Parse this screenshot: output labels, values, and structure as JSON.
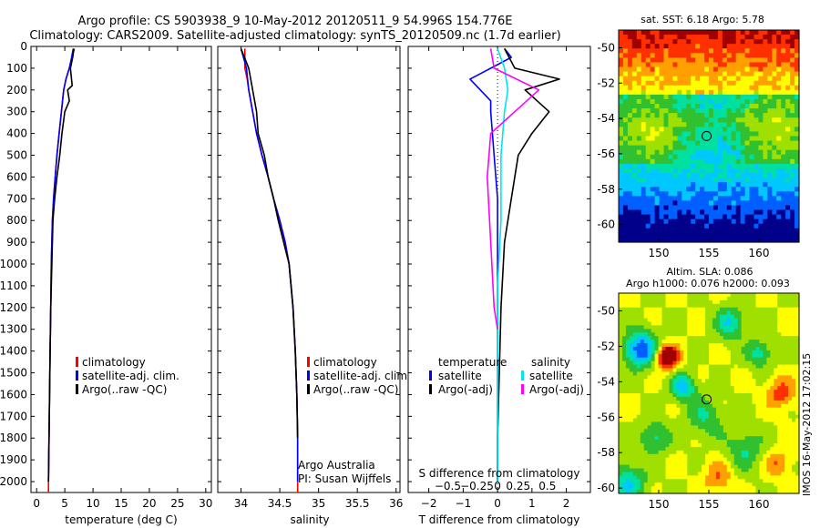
{
  "header": {
    "line1": "Argo profile: CS 5903938_9 10-May-2012 20120511_9 54.996S 154.776E",
    "line2": "Climatology: CARS2009. Satellite-adjusted climatology: synTS_20120509.nc (1.7d earlier)"
  },
  "side_stamp": "IMOS 16-May-2012 17:02:15",
  "colors": {
    "climatology": "#ff0000",
    "satellite": "#0000ff",
    "argo": "#000000",
    "sal_satellite": "#00e5ee",
    "sal_argo": "#ff00ff",
    "marker": "#000000"
  },
  "chart_data": [
    {
      "type": "line",
      "panel": "temperature",
      "xlabel": "temperature (deg C)",
      "ylabel": "",
      "xlim": [
        -1,
        31
      ],
      "ylim": [
        2050,
        0
      ],
      "xticks": [
        0,
        5,
        10,
        15,
        20,
        25,
        30
      ],
      "xtick_labels": [
        "0",
        "5",
        "10",
        "15",
        "20",
        "25",
        "30"
      ],
      "yticks": [
        0,
        100,
        200,
        300,
        400,
        500,
        600,
        700,
        800,
        900,
        1000,
        1100,
        1200,
        1300,
        1400,
        1500,
        1600,
        1700,
        1800,
        1900,
        2000
      ],
      "ytick_labels": [
        "0",
        "100",
        "200",
        "300",
        "400",
        "500",
        "600",
        "700",
        "800",
        "900",
        "1000",
        "1100",
        "1200",
        "1300",
        "1400",
        "1500",
        "1600",
        "1700",
        "1800",
        "1900",
        "2000"
      ],
      "legend": {
        "placement": "lower-center",
        "entries": [
          "climatology",
          "satellite-adj. clim.",
          "Argo(..raw -QC)"
        ]
      },
      "series": [
        {
          "name": "climatology",
          "color": "#ff0000",
          "x": [
            6.7,
            6.3,
            5.8,
            5.2,
            4.8,
            4.4,
            4.0,
            3.6,
            3.3,
            3.0,
            2.8,
            2.6,
            2.5,
            2.4,
            2.3,
            2.2,
            2.15,
            2.1,
            2.1
          ],
          "y": [
            10,
            50,
            100,
            150,
            200,
            300,
            400,
            500,
            600,
            700,
            800,
            1000,
            1200,
            1400,
            1600,
            1800,
            1900,
            2000,
            2050
          ]
        },
        {
          "name": "satellite-adj. clim.",
          "color": "#0000ff",
          "x": [
            6.5,
            6.2,
            5.8,
            5.2,
            4.8,
            4.4,
            4.0,
            3.6,
            3.3,
            3.0,
            2.8,
            2.6,
            2.5,
            2.4,
            2.3,
            2.2,
            2.15,
            2.1
          ],
          "y": [
            10,
            50,
            100,
            150,
            200,
            300,
            400,
            500,
            600,
            700,
            800,
            1000,
            1200,
            1400,
            1600,
            1800,
            1900,
            2000
          ]
        },
        {
          "name": "Argo(..raw -QC)",
          "color": "#000000",
          "x": [
            6.6,
            6.4,
            6.0,
            6.3,
            5.5,
            5.8,
            5.0,
            4.5,
            4.1,
            3.6,
            3.2,
            2.9,
            2.7,
            2.5,
            2.4,
            2.3,
            2.2,
            2.15,
            2.1
          ],
          "y": [
            10,
            50,
            100,
            180,
            200,
            250,
            300,
            400,
            500,
            600,
            700,
            800,
            1000,
            1200,
            1400,
            1600,
            1800,
            1900,
            2000
          ]
        }
      ]
    },
    {
      "type": "line",
      "panel": "salinity",
      "xlabel": "salinity",
      "xlim": [
        33.7,
        36.05
      ],
      "ylim": [
        2050,
        0
      ],
      "xticks": [
        34,
        34.5,
        35,
        35.5,
        36
      ],
      "xtick_labels": [
        "34",
        "34.5",
        "35",
        "35.5",
        "36"
      ],
      "legend": {
        "placement": "lower-right",
        "entries": [
          "climatology",
          "satellite-adj. clim.",
          "Argo(..raw -QC)"
        ]
      },
      "annotations": [
        "Argo Australia",
        "PI: Susan Wijffels"
      ],
      "series": [
        {
          "name": "climatology",
          "color": "#ff0000",
          "x": [
            34.05,
            34.05,
            34.08,
            34.1,
            34.15,
            34.2,
            34.27,
            34.35,
            34.42,
            34.5,
            34.57,
            34.62,
            34.67,
            34.7,
            34.72,
            34.73,
            34.73
          ],
          "y": [
            10,
            100,
            150,
            200,
            300,
            400,
            500,
            600,
            700,
            800,
            900,
            1000,
            1200,
            1400,
            1600,
            1800,
            2050
          ]
        },
        {
          "name": "satellite-adj. clim.",
          "color": "#0000ff",
          "x": [
            34.0,
            34.07,
            34.1,
            34.15,
            34.2,
            34.27,
            34.35,
            34.42,
            34.5,
            34.57,
            34.62,
            34.67,
            34.7,
            34.72,
            34.73,
            34.73
          ],
          "y": [
            10,
            100,
            200,
            300,
            400,
            500,
            600,
            700,
            800,
            900,
            1000,
            1200,
            1400,
            1600,
            1800,
            2000
          ]
        },
        {
          "name": "Argo(..raw -QC)",
          "color": "#000000",
          "x": [
            34.0,
            34.1,
            34.15,
            34.2,
            34.22,
            34.3,
            34.35,
            34.42,
            34.48,
            34.55,
            34.62,
            34.67,
            34.7,
            34.72,
            34.73
          ],
          "y": [
            10,
            100,
            200,
            300,
            400,
            500,
            600,
            700,
            800,
            900,
            1000,
            1200,
            1400,
            1600,
            1800
          ]
        }
      ]
    },
    {
      "type": "line",
      "panel": "difference",
      "xlabel": "T difference from climatology",
      "xlabel_top": "S difference from climatology",
      "xlim": [
        -2.6,
        2.7
      ],
      "ylim": [
        2050,
        0
      ],
      "xticks": [
        -2,
        -1,
        0,
        1,
        2
      ],
      "xtick_labels": [
        "−2",
        "−1",
        "0",
        "1",
        "2"
      ],
      "s_tick_labels": [
        "−0.5",
        "−0.25",
        "0",
        "0.25",
        "0.5"
      ],
      "legend": {
        "placement": "lower",
        "temperature_title": "temperature",
        "salinity_title": "salinity",
        "temperature_entries": [
          "satellite",
          "Argo(-adj)"
        ],
        "salinity_entries": [
          "satellite",
          "Argo(-adj)"
        ]
      },
      "series": [
        {
          "name": "satellite",
          "group": "temperature",
          "color": "#0000ff",
          "x": [
            0.2,
            0.4,
            -0.8,
            -0.2,
            -0.2,
            -0.1,
            0.0,
            0.0,
            0.0,
            0.0,
            0.0,
            0.0
          ],
          "y": [
            10,
            50,
            150,
            250,
            300,
            500,
            700,
            900,
            1200,
            1500,
            1800,
            2000
          ]
        },
        {
          "name": "Argo(-adj)",
          "group": "temperature",
          "color": "#000000",
          "x": [
            0.2,
            0.5,
            1.8,
            0.8,
            1.5,
            1.0,
            0.6,
            0.4,
            0.2,
            0.1,
            0.05,
            0.0,
            0.0
          ],
          "y": [
            10,
            100,
            150,
            200,
            300,
            400,
            500,
            700,
            900,
            1200,
            1500,
            1800,
            2000
          ]
        },
        {
          "name": "satellite",
          "group": "salinity",
          "color": "#00e5ee",
          "x": [
            0.0,
            0.2,
            0.3,
            0.2,
            0.1,
            0.1,
            0.0,
            0.0,
            0.0,
            0.0
          ],
          "y": [
            10,
            100,
            200,
            300,
            500,
            800,
            1100,
            1400,
            1700,
            2000
          ]
        },
        {
          "name": "Argo(-adj)",
          "group": "salinity",
          "color": "#ff00ff",
          "x": [
            -0.2,
            -0.1,
            1.2,
            0.5,
            -0.2,
            -0.3,
            -0.2,
            -0.1,
            0.0
          ],
          "y": [
            10,
            100,
            200,
            300,
            400,
            600,
            900,
            1200,
            1300
          ]
        }
      ]
    },
    {
      "type": "heatmap",
      "panel": "sst",
      "title": "sat. SST: 6.18 Argo: 5.78",
      "xlim": [
        146,
        164
      ],
      "ylim": [
        -61,
        -49
      ],
      "xticks": [
        150,
        155,
        160
      ],
      "xtick_labels": [
        "150",
        "155",
        "160"
      ],
      "yticks": [
        -50,
        -52,
        -54,
        -56,
        -58,
        -60
      ],
      "ytick_labels": [
        "-50",
        "-52",
        "-54",
        "-56",
        "-58",
        "-60"
      ],
      "marker": {
        "lon": 154.776,
        "lat": -54.996
      },
      "color_scale": [
        "#00008b",
        "#0060ff",
        "#00c8ff",
        "#00e0a0",
        "#30c030",
        "#a0e000",
        "#ffff00",
        "#ffa000",
        "#ff3000",
        "#a00000"
      ]
    },
    {
      "type": "heatmap",
      "panel": "sla",
      "title": "Altim. SLA: 0.086",
      "subtitle": "Argo h1000: 0.076 h2000: 0.093",
      "xlim": [
        146,
        164
      ],
      "ylim": [
        -60.3,
        -49
      ],
      "xticks": [
        150,
        155,
        160
      ],
      "xtick_labels": [
        "150",
        "155",
        "160"
      ],
      "yticks": [
        -50,
        -52,
        -54,
        -56,
        -58,
        -60
      ],
      "ytick_labels": [
        "-50",
        "-52",
        "-54",
        "-56",
        "-58",
        "-60"
      ],
      "marker": {
        "lon": 154.776,
        "lat": -54.996
      },
      "color_scale": [
        "#00008b",
        "#0060ff",
        "#00c8ff",
        "#00e0a0",
        "#30c030",
        "#a0e000",
        "#ffff00",
        "#ffa000",
        "#ff3000",
        "#a00000"
      ]
    }
  ]
}
